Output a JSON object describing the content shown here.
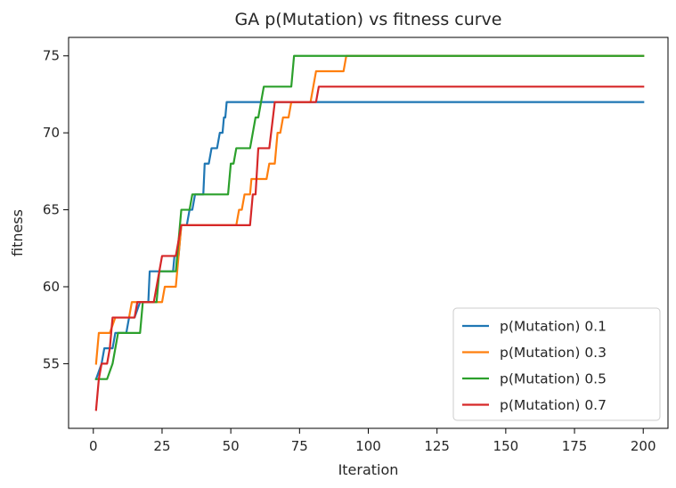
{
  "chart_data": {
    "type": "line",
    "title": "GA p(Mutation) vs fitness curve",
    "xlabel": "Iteration",
    "ylabel": "fitness",
    "xlim": [
      -9,
      209
    ],
    "ylim": [
      50.8,
      76.2
    ],
    "xticks": [
      0,
      25,
      50,
      75,
      100,
      125,
      150,
      175,
      200
    ],
    "yticks": [
      55,
      60,
      65,
      70,
      75
    ],
    "grid": false,
    "legend_position": "bottom-right",
    "series": [
      {
        "name": "p(Mutation) 0.1",
        "color": "#1f77b4",
        "points": [
          [
            1,
            54
          ],
          [
            3,
            55
          ],
          [
            4,
            56
          ],
          [
            7,
            56
          ],
          [
            8,
            57
          ],
          [
            12,
            57
          ],
          [
            13,
            58
          ],
          [
            15,
            58
          ],
          [
            17,
            59
          ],
          [
            20,
            59
          ],
          [
            20.5,
            61
          ],
          [
            23,
            61
          ],
          [
            29,
            61
          ],
          [
            29.5,
            62
          ],
          [
            31,
            62
          ],
          [
            32,
            64
          ],
          [
            34,
            64
          ],
          [
            35,
            65
          ],
          [
            36,
            65
          ],
          [
            37,
            66
          ],
          [
            40,
            66
          ],
          [
            40.5,
            68
          ],
          [
            42,
            68
          ],
          [
            43,
            69
          ],
          [
            45,
            69
          ],
          [
            46,
            70
          ],
          [
            47,
            70
          ],
          [
            47.5,
            71
          ],
          [
            48,
            71
          ],
          [
            48.5,
            72
          ],
          [
            200,
            72
          ]
        ]
      },
      {
        "name": "p(Mutation) 0.3",
        "color": "#ff7f0e",
        "points": [
          [
            1,
            55
          ],
          [
            2,
            57
          ],
          [
            6,
            57
          ],
          [
            8,
            58
          ],
          [
            13,
            58
          ],
          [
            14,
            59
          ],
          [
            18,
            59
          ],
          [
            19,
            59
          ],
          [
            25,
            59
          ],
          [
            26,
            60
          ],
          [
            30,
            60
          ],
          [
            31,
            62
          ],
          [
            32,
            64
          ],
          [
            44,
            64
          ],
          [
            52,
            64
          ],
          [
            53,
            65
          ],
          [
            54,
            65
          ],
          [
            55,
            66
          ],
          [
            57,
            66
          ],
          [
            57.5,
            67
          ],
          [
            63,
            67
          ],
          [
            64,
            68
          ],
          [
            66,
            68
          ],
          [
            67,
            70
          ],
          [
            68,
            70
          ],
          [
            69,
            71
          ],
          [
            71,
            71
          ],
          [
            72,
            72
          ],
          [
            79,
            72
          ],
          [
            80,
            73
          ],
          [
            81,
            74
          ],
          [
            91,
            74
          ],
          [
            92,
            75
          ],
          [
            200,
            75
          ]
        ]
      },
      {
        "name": "p(Mutation) 0.5",
        "color": "#2ca02c",
        "points": [
          [
            1,
            54
          ],
          [
            5,
            54
          ],
          [
            7,
            55
          ],
          [
            8,
            56
          ],
          [
            9,
            57
          ],
          [
            17,
            57
          ],
          [
            18,
            59
          ],
          [
            23,
            59
          ],
          [
            24,
            61
          ],
          [
            26,
            61
          ],
          [
            30,
            61
          ],
          [
            31,
            63
          ],
          [
            32,
            65
          ],
          [
            35,
            65
          ],
          [
            36,
            66
          ],
          [
            49,
            66
          ],
          [
            50,
            68
          ],
          [
            51,
            68
          ],
          [
            52,
            69
          ],
          [
            57,
            69
          ],
          [
            58,
            70
          ],
          [
            59,
            71
          ],
          [
            60,
            71
          ],
          [
            61,
            72
          ],
          [
            62,
            73
          ],
          [
            72,
            73
          ],
          [
            73,
            75
          ],
          [
            200,
            75
          ]
        ]
      },
      {
        "name": "p(Mutation) 0.7",
        "color": "#d62728",
        "points": [
          [
            1,
            52
          ],
          [
            2,
            54
          ],
          [
            3,
            55
          ],
          [
            5,
            55
          ],
          [
            6,
            56
          ],
          [
            7,
            58
          ],
          [
            15,
            58
          ],
          [
            16,
            59
          ],
          [
            22,
            59
          ],
          [
            25,
            62
          ],
          [
            30,
            62
          ],
          [
            32,
            64
          ],
          [
            57,
            64
          ],
          [
            58,
            66
          ],
          [
            59,
            66
          ],
          [
            60,
            69
          ],
          [
            64,
            69
          ],
          [
            66,
            72
          ],
          [
            81,
            72
          ],
          [
            82,
            73
          ],
          [
            200,
            73
          ]
        ]
      }
    ]
  }
}
